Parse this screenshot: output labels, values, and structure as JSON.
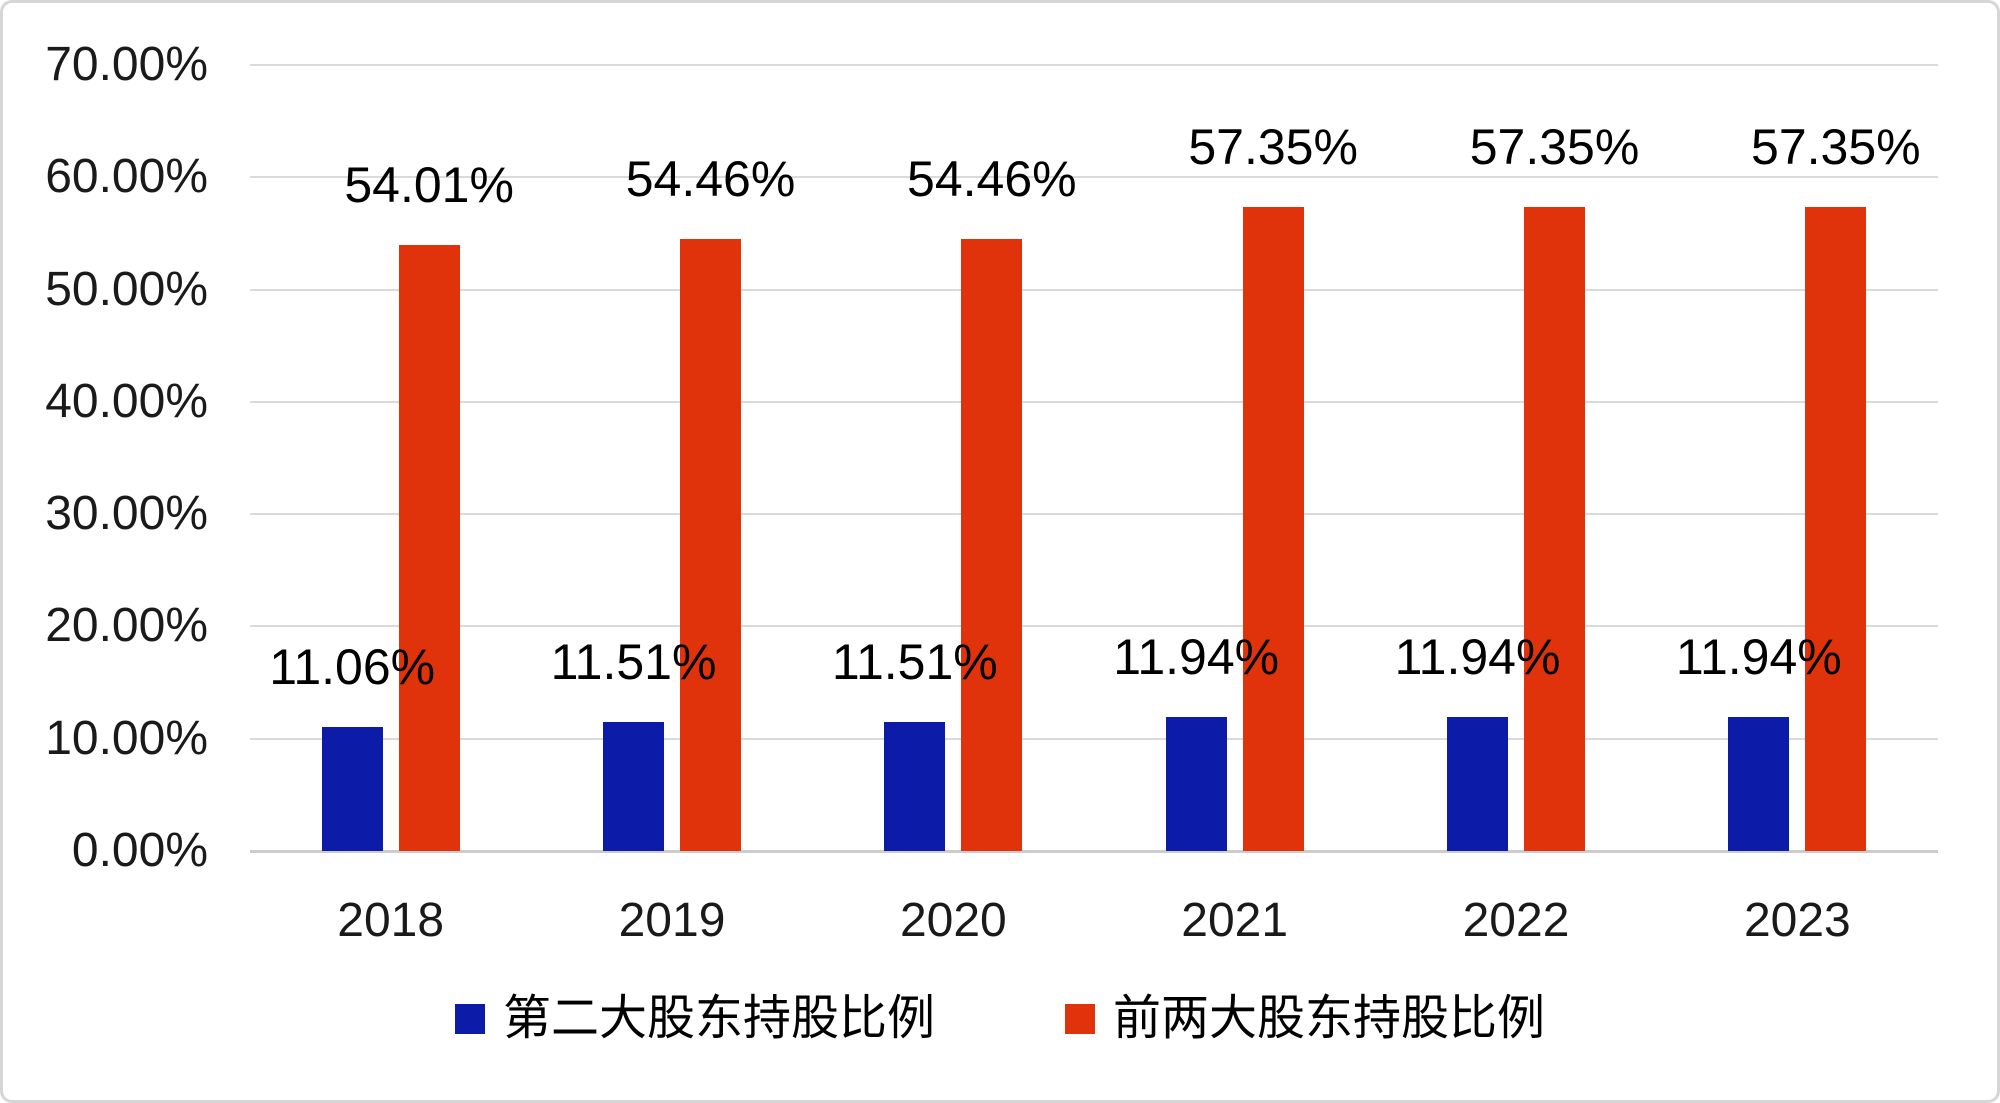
{
  "chart_data": {
    "type": "bar",
    "title": "",
    "xlabel": "",
    "ylabel": "",
    "categories": [
      "2018",
      "2019",
      "2020",
      "2021",
      "2022",
      "2023"
    ],
    "series": [
      {
        "name": "第二大股东持股比例",
        "color": "#0c1ca9",
        "values": [
          11.06,
          11.51,
          11.51,
          11.94,
          11.94,
          11.94
        ],
        "labels": [
          "11.06%",
          "11.51%",
          "11.51%",
          "11.94%",
          "11.94%",
          "11.94%"
        ]
      },
      {
        "name": "前两大股东持股比例",
        "color": "#e1330b",
        "values": [
          54.01,
          54.46,
          54.46,
          57.35,
          57.35,
          57.35
        ],
        "labels": [
          "54.01%",
          "54.46%",
          "54.46%",
          "57.35%",
          "57.35%",
          "57.35%"
        ]
      }
    ],
    "y_axis": {
      "min": 0,
      "max": 70,
      "step": 10,
      "tick_labels": [
        "0.00%",
        "10.00%",
        "20.00%",
        "30.00%",
        "40.00%",
        "50.00%",
        "60.00%",
        "70.00%"
      ]
    },
    "ylim": [
      0,
      70
    ],
    "grid": true,
    "legend_position": "bottom"
  },
  "colors": {
    "gridline": "#dadada",
    "baseline": "#cccccc",
    "border": "#d6d6d6",
    "tick_text": "#1a1a1a",
    "label_text": "#000000",
    "background": "#ffffff"
  }
}
